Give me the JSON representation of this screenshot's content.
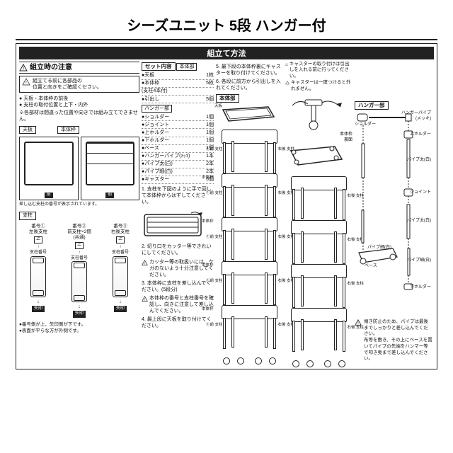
{
  "title": "シーズユニット 5段 ハンガー付",
  "assembly_header": "組立て方法",
  "caution": {
    "header": "組立時の注意",
    "box": "組立てる前に各部品の\n位置と向きをご確認ください。",
    "bullets": [
      "天板・本体枠の前後",
      "支柱の取付位置と上下・内外"
    ],
    "note": "※各部材は間違った位置や向きでは組み立てできません。"
  },
  "labels": {
    "tenban": "天板",
    "hontaiwaku": "本体枠",
    "shichu": "支柱",
    "set": "セット内容",
    "hontai_bu": "本体部",
    "hanger_bu": "ハンガー部",
    "mae": "前",
    "ue": "上",
    "shichu_bango": "支柱番号",
    "yajirushi": "矢印",
    "hontaiwaku_ura": "本体枠\n裏面"
  },
  "dia_note": "差し込む支柱の番号が表示されています。",
  "pillars": [
    {
      "num": "番号①",
      "sub": "左後支柱"
    },
    {
      "num": "番号②",
      "sub": "前支柱×2個\n(共通)"
    },
    {
      "num": "番号③",
      "sub": "右後支柱"
    }
  ],
  "pillar_notes": [
    "●番号側が上、矢印側が下です。",
    "●表面が平らな方が外側です。"
  ],
  "set_contents": {
    "hontai": [
      {
        "nm": "●天板",
        "qt": "1枚"
      },
      {
        "nm": "●本体枠",
        "qt": "5枚"
      },
      {
        "nm": "  (支柱4本付)",
        "qt": ""
      },
      {
        "nm": "●引出し",
        "qt": "5個"
      }
    ],
    "hanger": [
      {
        "nm": "●ショルダー",
        "qt": "1個"
      },
      {
        "nm": "●ジョイント",
        "qt": "1個"
      },
      {
        "nm": "●上ホルダー",
        "qt": "1個"
      },
      {
        "nm": "●下ホルダー",
        "qt": "1個"
      },
      {
        "nm": "●ベース",
        "qt": "1個"
      },
      {
        "nm": "●ハンガーパイプ(ﾒｯｷ)",
        "qt": "1本"
      },
      {
        "nm": "●パイプ太(白)",
        "qt": "2本"
      },
      {
        "nm": "●パイプ細(白)",
        "qt": "2本"
      },
      {
        "nm": "●キャスター",
        "qt": "6個"
      }
    ]
  },
  "steps": {
    "s1": "1. 支柱を下図のように手で回して本体枠からはずしてください。",
    "s2": "2. 切り口をカッター等できれいにしてください。",
    "s2w": "カッター等の取扱いには、ケガのないよう十分注意してください。",
    "s3": "3. 本体枠に支柱を差し込んでください。(5段分)",
    "s3w": "本体枠の番号と支柱番号を確認し、向きに注意して差し込んでください。",
    "s4": "4. 最上段に天板を取り付けてください。",
    "s5": "5. 最下段の本体枠裏にキャスターを取り付けてください。",
    "s6": "6. 各段に前方から引出しを入れてください。"
  },
  "caster_note": {
    "w1": "キャスターの取り付けは引出しを入れる前に行ってください。",
    "w2": "キャスターは一度つけると外れません。"
  },
  "hanger_parts": {
    "shoulder": "ショルダー",
    "hanger_pipe": "ハンガーパイプ\n(メッキ)",
    "up_holder": "上ホルダー",
    "pipe_thick": "パイプ太(白)",
    "joint": "ジョイント",
    "pipe_thin": "パイプ細(白)",
    "down_holder": "下ホルダー",
    "base": "ベース"
  },
  "angle_note": "傾き防止のため、パイプは最後までしっかりと差し込んでください。\n布等を敷き、その上にベースを置いてパイプの先端をハンマー等で叩き奥まで差し込んでください。",
  "tier_labels": {
    "left": "①前\n支柱",
    "right": "右後\n支柱",
    "body": "本体枠"
  },
  "top_label": "天板"
}
